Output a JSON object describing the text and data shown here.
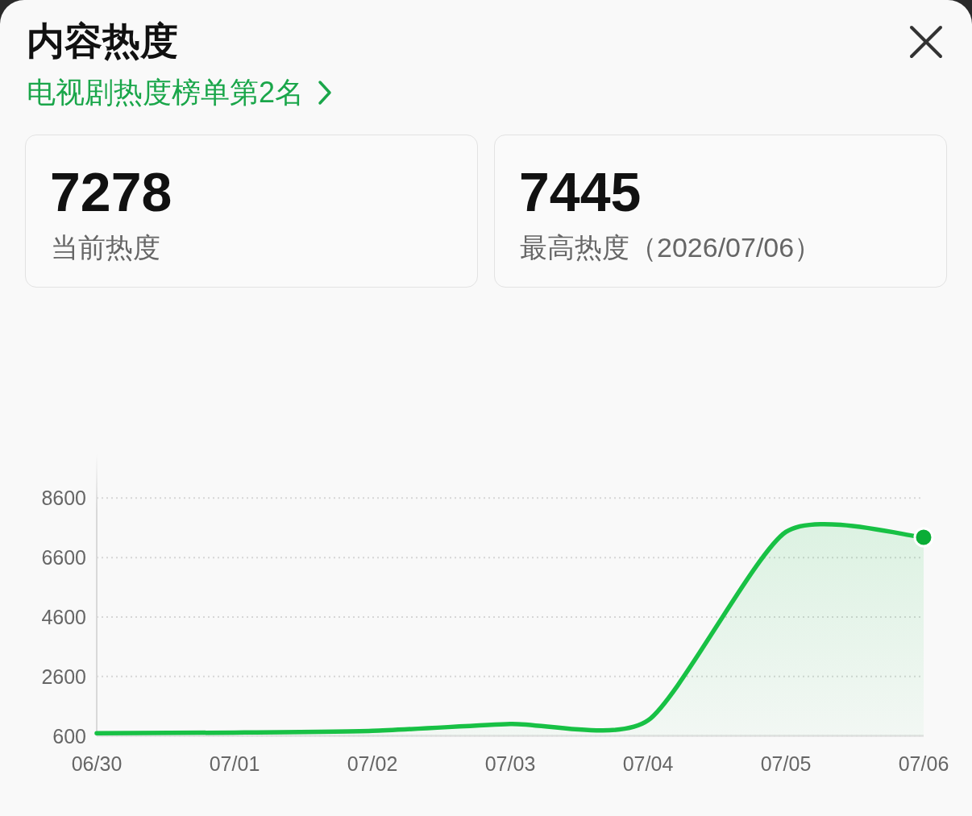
{
  "chart_data": {
    "type": "area",
    "title": "内容热度",
    "subtitle": "电视剧热度榜单第2名",
    "annotations": [
      "7278",
      "当前热度",
      "7445",
      "最高热度（2026/07/06）"
    ],
    "categories": [
      "06/30",
      "07/01",
      "07/02",
      "07/03",
      "07/04",
      "07/05",
      "07/06"
    ],
    "series": [
      {
        "color": "#18c145",
        "values": [
          690,
          710,
          770,
          1000,
          1120,
          7460,
          7280
        ]
      },
      {
        "type": "scatter",
        "color": "#0aad36",
        "marker": "circle",
        "x": [
          "07/06"
        ],
        "values": [
          7280
        ]
      }
    ],
    "ylim": [
      600,
      10100
    ],
    "yticks": [
      600,
      2600,
      4600,
      6600,
      8600
    ],
    "grid": "y"
  }
}
